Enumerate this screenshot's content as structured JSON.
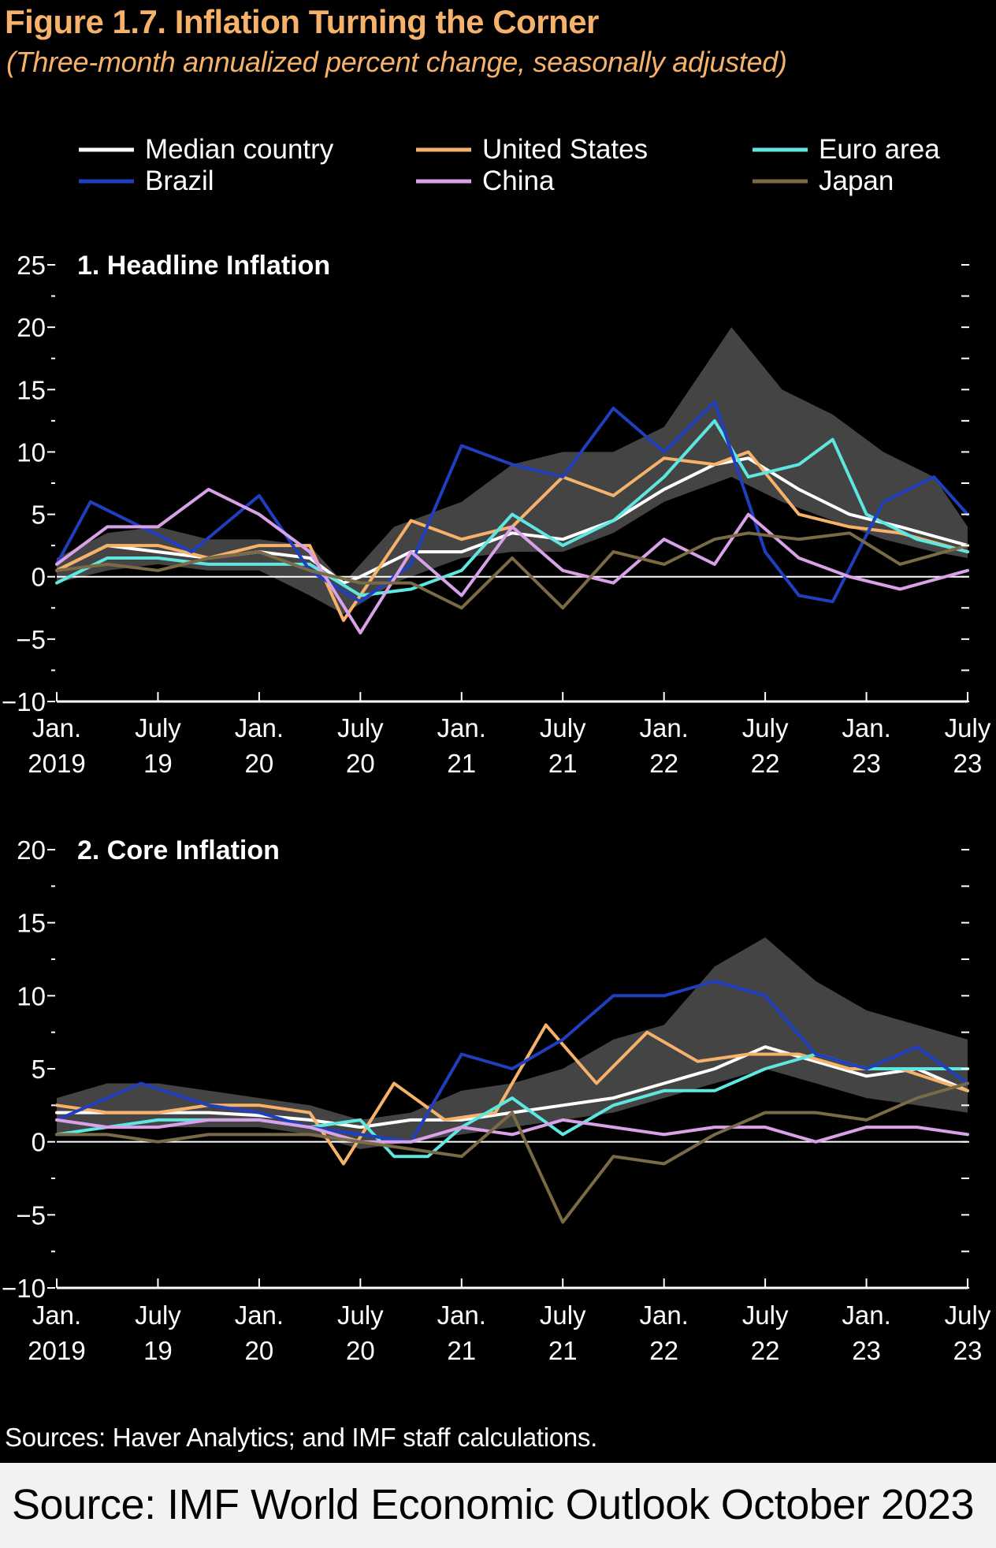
{
  "figure": {
    "title": "Figure 1.7.  Inflation Turning the Corner",
    "subtitle": "(Three-month annualized percent change, seasonally adjusted)",
    "sources_note": "Sources: Haver Analytics; and IMF staff calculations.",
    "footer": "Source: IMF World Economic Outlook October 2023"
  },
  "legend": [
    {
      "name": "Median country",
      "color": "#ffffff"
    },
    {
      "name": "United States",
      "color": "#f6b26b"
    },
    {
      "name": "Euro area",
      "color": "#5ee6e0"
    },
    {
      "name": "Brazil",
      "color": "#1f3fbf"
    },
    {
      "name": "China",
      "color": "#d9a1e8"
    },
    {
      "name": "Japan",
      "color": "#7a6a45"
    }
  ],
  "colors": {
    "background": "#000000",
    "band": "#505050",
    "axis": "#ffffff",
    "title": "#f6b26b"
  },
  "chart_data": [
    {
      "type": "line",
      "title": "1. Headline Inflation",
      "ylim": [
        -10,
        25
      ],
      "yticks": [
        -10,
        -5,
        0,
        5,
        10,
        15,
        20,
        25
      ],
      "ytick_labels": [
        "−10",
        "−5",
        "0",
        "5",
        "10",
        "15",
        "20",
        "25"
      ],
      "xlim": [
        "2019-01",
        "2023-07"
      ],
      "xticks": [
        {
          "x": "2019-01",
          "line1": "Jan.",
          "line2": "2019"
        },
        {
          "x": "2019-07",
          "line1": "July",
          "line2": "19"
        },
        {
          "x": "2020-01",
          "line1": "Jan.",
          "line2": "20"
        },
        {
          "x": "2020-07",
          "line1": "July",
          "line2": "20"
        },
        {
          "x": "2021-01",
          "line1": "Jan.",
          "line2": "21"
        },
        {
          "x": "2021-07",
          "line1": "July",
          "line2": "21"
        },
        {
          "x": "2022-01",
          "line1": "Jan.",
          "line2": "22"
        },
        {
          "x": "2022-07",
          "line1": "July",
          "line2": "22"
        },
        {
          "x": "2023-01",
          "line1": "Jan.",
          "line2": "23"
        },
        {
          "x": "2023-07",
          "line1": "July",
          "line2": "23"
        }
      ],
      "band": {
        "x": [
          "2019-01",
          "2019-04",
          "2019-07",
          "2019-10",
          "2020-01",
          "2020-04",
          "2020-06",
          "2020-09",
          "2021-01",
          "2021-04",
          "2021-07",
          "2021-10",
          "2022-01",
          "2022-03",
          "2022-05",
          "2022-08",
          "2022-11",
          "2023-02",
          "2023-05",
          "2023-07"
        ],
        "upper": [
          1.5,
          3.5,
          4,
          3,
          3,
          2.5,
          -0.5,
          4,
          6,
          9,
          10,
          10,
          12,
          16,
          20,
          15,
          13,
          10,
          8,
          4
        ],
        "lower": [
          -0.5,
          0.5,
          1,
          0.5,
          0.5,
          -1.5,
          -3,
          -0.5,
          1.5,
          2,
          2,
          3.5,
          6,
          7,
          8,
          6,
          4.5,
          3,
          2,
          1.5
        ]
      },
      "series": [
        {
          "name": "Median country",
          "color": "#ffffff",
          "x": [
            "2019-01",
            "2019-04",
            "2019-07",
            "2019-10",
            "2020-01",
            "2020-04",
            "2020-06",
            "2020-07",
            "2020-10",
            "2021-01",
            "2021-04",
            "2021-07",
            "2021-10",
            "2022-01",
            "2022-04",
            "2022-06",
            "2022-09",
            "2022-12",
            "2023-03",
            "2023-07"
          ],
          "values": [
            0.5,
            2.5,
            2,
            1.5,
            2,
            1.5,
            -0.5,
            0,
            2,
            2,
            3.5,
            3,
            4.5,
            7,
            9,
            9.5,
            7,
            5,
            4,
            2.5
          ]
        },
        {
          "name": "United States",
          "color": "#f6b26b",
          "x": [
            "2019-01",
            "2019-04",
            "2019-07",
            "2019-10",
            "2020-01",
            "2020-04",
            "2020-06",
            "2020-08",
            "2020-10",
            "2021-01",
            "2021-04",
            "2021-07",
            "2021-10",
            "2022-01",
            "2022-04",
            "2022-06",
            "2022-09",
            "2022-12",
            "2023-03",
            "2023-07"
          ],
          "values": [
            0.5,
            2.5,
            2.5,
            1.5,
            2.5,
            2.5,
            -3.5,
            0.5,
            4.5,
            3,
            4,
            8,
            6.5,
            9.5,
            9,
            10,
            5,
            4,
            3.5,
            2
          ]
        },
        {
          "name": "Euro area",
          "color": "#5ee6e0",
          "x": [
            "2019-01",
            "2019-04",
            "2019-07",
            "2019-10",
            "2020-01",
            "2020-04",
            "2020-07",
            "2020-10",
            "2021-01",
            "2021-04",
            "2021-07",
            "2021-10",
            "2022-01",
            "2022-04",
            "2022-06",
            "2022-09",
            "2022-11",
            "2023-01",
            "2023-04",
            "2023-07"
          ],
          "values": [
            -0.5,
            1.5,
            1.5,
            1,
            1,
            1,
            -1.5,
            -1,
            0.5,
            5,
            2.5,
            4.5,
            8,
            12.5,
            8,
            9,
            11,
            5,
            3,
            2
          ]
        },
        {
          "name": "Brazil",
          "color": "#1f3fbf",
          "x": [
            "2019-01",
            "2019-03",
            "2019-06",
            "2019-09",
            "2020-01",
            "2020-04",
            "2020-07",
            "2020-10",
            "2021-01",
            "2021-04",
            "2021-07",
            "2021-10",
            "2022-01",
            "2022-04",
            "2022-05",
            "2022-07",
            "2022-09",
            "2022-11",
            "2023-02",
            "2023-05",
            "2023-07"
          ],
          "values": [
            1,
            6,
            4,
            2,
            6.5,
            0.5,
            -2,
            1,
            10.5,
            9,
            8,
            13.5,
            10,
            14,
            10,
            2,
            -1.5,
            -2,
            6,
            8,
            5
          ]
        },
        {
          "name": "China",
          "color": "#d9a1e8",
          "x": [
            "2019-01",
            "2019-04",
            "2019-07",
            "2019-10",
            "2020-01",
            "2020-04",
            "2020-07",
            "2020-10",
            "2021-01",
            "2021-04",
            "2021-07",
            "2021-10",
            "2022-01",
            "2022-04",
            "2022-06",
            "2022-09",
            "2022-12",
            "2023-03",
            "2023-07"
          ],
          "values": [
            1,
            4,
            4,
            7,
            5,
            2,
            -4.5,
            2,
            -1.5,
            4,
            0.5,
            -0.5,
            3,
            1,
            5,
            1.5,
            0,
            -1,
            0.5
          ]
        },
        {
          "name": "Japan",
          "color": "#7a6a45",
          "x": [
            "2019-01",
            "2019-04",
            "2019-07",
            "2019-10",
            "2020-01",
            "2020-04",
            "2020-07",
            "2020-10",
            "2021-01",
            "2021-04",
            "2021-07",
            "2021-10",
            "2022-01",
            "2022-04",
            "2022-06",
            "2022-09",
            "2022-12",
            "2023-03",
            "2023-07"
          ],
          "values": [
            0.5,
            1,
            0.5,
            1.5,
            2,
            0.5,
            -0.5,
            -0.5,
            -2.5,
            1.5,
            -2.5,
            2,
            1,
            3,
            3.5,
            3,
            3.5,
            1,
            2.5
          ]
        }
      ]
    },
    {
      "type": "line",
      "title": "2. Core Inflation",
      "ylim": [
        -10,
        20
      ],
      "yticks": [
        -10,
        -5,
        0,
        5,
        10,
        15,
        20
      ],
      "ytick_labels": [
        "−10",
        "−5",
        "0",
        "5",
        "10",
        "15",
        "20"
      ],
      "xlim": [
        "2019-01",
        "2023-07"
      ],
      "xticks": [
        {
          "x": "2019-01",
          "line1": "Jan.",
          "line2": "2019"
        },
        {
          "x": "2019-07",
          "line1": "July",
          "line2": "19"
        },
        {
          "x": "2020-01",
          "line1": "Jan.",
          "line2": "20"
        },
        {
          "x": "2020-07",
          "line1": "July",
          "line2": "20"
        },
        {
          "x": "2021-01",
          "line1": "Jan.",
          "line2": "21"
        },
        {
          "x": "2021-07",
          "line1": "July",
          "line2": "21"
        },
        {
          "x": "2022-01",
          "line1": "Jan.",
          "line2": "22"
        },
        {
          "x": "2022-07",
          "line1": "July",
          "line2": "22"
        },
        {
          "x": "2023-01",
          "line1": "Jan.",
          "line2": "23"
        },
        {
          "x": "2023-07",
          "line1": "July",
          "line2": "23"
        }
      ],
      "band": {
        "x": [
          "2019-01",
          "2019-04",
          "2019-07",
          "2019-10",
          "2020-01",
          "2020-04",
          "2020-07",
          "2020-10",
          "2021-01",
          "2021-04",
          "2021-07",
          "2021-10",
          "2022-01",
          "2022-04",
          "2022-07",
          "2022-10",
          "2023-01",
          "2023-04",
          "2023-07"
        ],
        "upper": [
          3,
          4,
          4,
          3.5,
          3,
          2.5,
          1.5,
          2,
          3.5,
          4,
          5,
          7,
          8,
          12,
          14,
          11,
          9,
          8,
          7
        ],
        "lower": [
          0.5,
          1,
          1,
          1,
          1,
          0.5,
          -0.5,
          0,
          0.5,
          1,
          1.5,
          2,
          3,
          4,
          5,
          4,
          3,
          2.5,
          2
        ]
      },
      "series": [
        {
          "name": "Median country",
          "color": "#ffffff",
          "x": [
            "2019-01",
            "2019-04",
            "2019-07",
            "2019-10",
            "2020-01",
            "2020-04",
            "2020-07",
            "2020-10",
            "2021-01",
            "2021-04",
            "2021-07",
            "2021-10",
            "2022-01",
            "2022-04",
            "2022-07",
            "2022-10",
            "2023-01",
            "2023-04",
            "2023-07"
          ],
          "values": [
            2,
            2,
            2,
            2,
            1.8,
            1.5,
            1,
            1.5,
            1.5,
            2,
            2.5,
            3,
            4,
            5,
            6.5,
            5.5,
            4.5,
            5,
            3.5
          ]
        },
        {
          "name": "United States",
          "color": "#f6b26b",
          "x": [
            "2019-01",
            "2019-04",
            "2019-07",
            "2019-10",
            "2020-01",
            "2020-04",
            "2020-06",
            "2020-09",
            "2020-12",
            "2021-03",
            "2021-06",
            "2021-09",
            "2021-12",
            "2022-03",
            "2022-06",
            "2022-09",
            "2022-12",
            "2023-03",
            "2023-07"
          ],
          "values": [
            2.5,
            2,
            2,
            2.5,
            2.5,
            2,
            -1.5,
            4,
            1.5,
            2,
            8,
            4,
            7.5,
            5.5,
            6,
            6,
            5,
            5,
            3.5
          ]
        },
        {
          "name": "Euro area",
          "color": "#5ee6e0",
          "x": [
            "2019-01",
            "2019-04",
            "2019-07",
            "2019-10",
            "2020-01",
            "2020-04",
            "2020-07",
            "2020-09",
            "2020-11",
            "2021-01",
            "2021-04",
            "2021-07",
            "2021-10",
            "2022-01",
            "2022-04",
            "2022-07",
            "2022-10",
            "2023-01",
            "2023-04",
            "2023-07"
          ],
          "values": [
            0.5,
            1,
            1.5,
            1.5,
            1.5,
            1,
            1.5,
            -1,
            -1,
            1,
            3,
            0.5,
            2.5,
            3.5,
            3.5,
            5,
            6,
            5,
            5,
            5
          ]
        },
        {
          "name": "Brazil",
          "color": "#1f3fbf",
          "x": [
            "2019-01",
            "2019-06",
            "2019-10",
            "2020-01",
            "2020-04",
            "2020-07",
            "2020-10",
            "2021-01",
            "2021-04",
            "2021-07",
            "2021-10",
            "2022-01",
            "2022-04",
            "2022-07",
            "2022-10",
            "2023-01",
            "2023-04",
            "2023-07"
          ],
          "values": [
            1.5,
            4,
            2.5,
            2,
            1,
            0.5,
            0,
            6,
            5,
            7,
            10,
            10,
            11,
            10,
            6,
            5,
            6.5,
            4
          ]
        },
        {
          "name": "China",
          "color": "#d9a1e8",
          "x": [
            "2019-01",
            "2019-04",
            "2019-07",
            "2019-10",
            "2020-01",
            "2020-04",
            "2020-07",
            "2020-10",
            "2021-01",
            "2021-04",
            "2021-07",
            "2021-10",
            "2022-01",
            "2022-04",
            "2022-07",
            "2022-10",
            "2023-01",
            "2023-04",
            "2023-07"
          ],
          "values": [
            1.5,
            1,
            1,
            1.5,
            1.5,
            1,
            0,
            0,
            1,
            0.5,
            1.5,
            1,
            0.5,
            1,
            1,
            0,
            1,
            1,
            0.5
          ]
        },
        {
          "name": "Japan",
          "color": "#7a6a45",
          "x": [
            "2019-01",
            "2019-04",
            "2019-07",
            "2019-10",
            "2020-01",
            "2020-04",
            "2020-07",
            "2020-10",
            "2021-01",
            "2021-04",
            "2021-07",
            "2021-10",
            "2022-01",
            "2022-04",
            "2022-07",
            "2022-10",
            "2023-01",
            "2023-04",
            "2023-07"
          ],
          "values": [
            0.5,
            0.5,
            0,
            0.5,
            0.5,
            0.5,
            0,
            -0.5,
            -1,
            2,
            -5.5,
            -1,
            -1.5,
            0.5,
            2,
            2,
            1.5,
            3,
            4
          ]
        }
      ]
    }
  ]
}
